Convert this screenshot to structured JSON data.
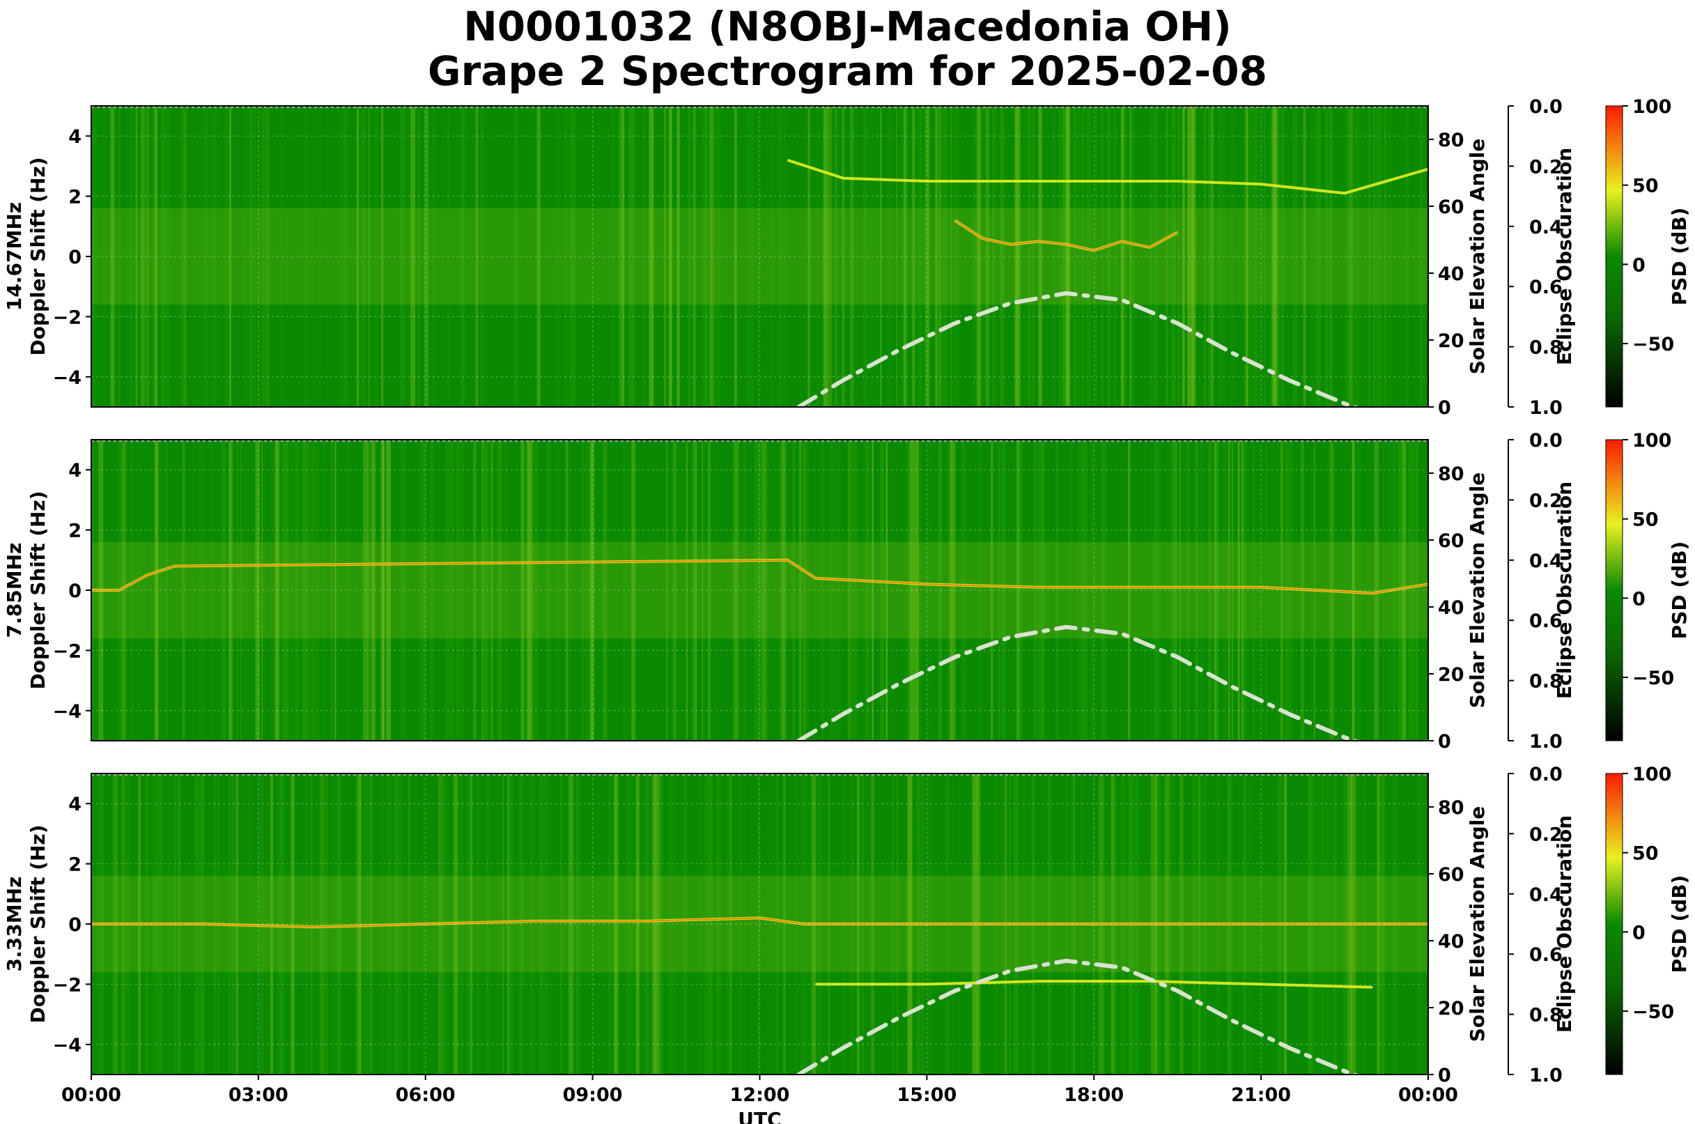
{
  "figure": {
    "title_line1": "N0001032 (N8OBJ-Macedonia OH)",
    "title_line2": "Grape 2 Spectrogram for 2025-02-08",
    "xlabel": "UTC",
    "x_ticks": [
      "00:00",
      "03:00",
      "06:00",
      "09:00",
      "12:00",
      "15:00",
      "18:00",
      "21:00",
      "00:00"
    ]
  },
  "colors": {
    "background_green": "#0a8a00",
    "noise_green": "#1f9d08",
    "signal_yellow": "#e6f020",
    "signal_red": "#ff3c00",
    "solar_curve": "#d9e2d0"
  },
  "chart_data": [
    {
      "type": "heatmap",
      "panel": "14.67MHz",
      "ylabel_line1": "14.67MHz",
      "ylabel_line2": "Doppler Shift (Hz)",
      "x_range_hours": [
        0,
        24
      ],
      "ylim": [
        -5,
        5
      ],
      "y_ticks": [
        "4",
        "2",
        "0",
        "−2",
        "−4"
      ],
      "right_ylabel": "Solar Elevation Angle",
      "right_ylim": [
        0,
        90
      ],
      "right_ticks": [
        "80",
        "60",
        "40",
        "20",
        "0"
      ],
      "eclipse_label": "Eclipse Obscuration",
      "eclipse_ticks": [
        "0.0",
        "0.2",
        "0.4",
        "0.6",
        "0.8",
        "1.0"
      ],
      "colorbar_label": "PSD (dB)",
      "colorbar_ticks": [
        "100",
        "50",
        "0",
        "−50"
      ],
      "colorbar_range": [
        -90,
        100
      ],
      "solar_elevation": {
        "x_hours": [
          12.7,
          13.5,
          14.5,
          15.5,
          16.5,
          17.5,
          18.5,
          19.5,
          20.5,
          21.5,
          22.5,
          23.0
        ],
        "y_deg": [
          0,
          8,
          17,
          25,
          31,
          34,
          32,
          25,
          16,
          8,
          1,
          -2
        ]
      },
      "doppler_traces": [
        {
          "name": "upper",
          "x_hours": [
            12.5,
            13.5,
            15.0,
            16.5,
            18.0,
            19.5,
            21.0,
            22.5,
            24.0
          ],
          "y_hz": [
            3.2,
            2.6,
            2.5,
            2.5,
            2.5,
            2.5,
            2.4,
            2.1,
            2.9
          ]
        },
        {
          "name": "main",
          "x_hours": [
            15.5,
            16.0,
            16.5,
            17.0,
            17.5,
            18.0,
            18.5,
            19.0,
            19.5
          ],
          "y_hz": [
            1.2,
            0.6,
            0.4,
            0.5,
            0.4,
            0.2,
            0.5,
            0.3,
            0.8
          ]
        }
      ]
    },
    {
      "type": "heatmap",
      "panel": "7.85MHz",
      "ylabel_line1": "7.85MHz",
      "ylabel_line2": "Doppler Shift (Hz)",
      "x_range_hours": [
        0,
        24
      ],
      "ylim": [
        -5,
        5
      ],
      "y_ticks": [
        "4",
        "2",
        "0",
        "−2",
        "−4"
      ],
      "right_ylabel": "Solar Elevation Angle",
      "right_ylim": [
        0,
        90
      ],
      "right_ticks": [
        "80",
        "60",
        "40",
        "20",
        "0"
      ],
      "eclipse_label": "Eclipse Obscuration",
      "eclipse_ticks": [
        "0.0",
        "0.2",
        "0.4",
        "0.6",
        "0.8",
        "1.0"
      ],
      "colorbar_label": "PSD (dB)",
      "colorbar_ticks": [
        "100",
        "50",
        "0",
        "−50"
      ],
      "colorbar_range": [
        -90,
        100
      ],
      "solar_elevation": {
        "x_hours": [
          12.7,
          13.5,
          14.5,
          15.5,
          16.5,
          17.5,
          18.5,
          19.5,
          20.5,
          21.5,
          22.5,
          23.0
        ],
        "y_deg": [
          0,
          8,
          17,
          25,
          31,
          34,
          32,
          25,
          16,
          8,
          1,
          -2
        ]
      },
      "doppler_traces": [
        {
          "name": "main",
          "x_hours": [
            0.0,
            0.5,
            1.0,
            1.5,
            12.5,
            13.0,
            15.0,
            17.0,
            19.0,
            21.0,
            23.0,
            24.0
          ],
          "y_hz": [
            0.0,
            0.0,
            0.5,
            0.8,
            1.0,
            0.4,
            0.2,
            0.1,
            0.1,
            0.1,
            -0.1,
            0.2
          ]
        }
      ]
    },
    {
      "type": "heatmap",
      "panel": "3.33MHz",
      "ylabel_line1": "3.33MHz",
      "ylabel_line2": "Doppler Shift (Hz)",
      "x_range_hours": [
        0,
        24
      ],
      "ylim": [
        -5,
        5
      ],
      "y_ticks": [
        "4",
        "2",
        "0",
        "−2",
        "−4"
      ],
      "right_ylabel": "Solar Elevation Angle",
      "right_ylim": [
        0,
        90
      ],
      "right_ticks": [
        "80",
        "60",
        "40",
        "20",
        "0"
      ],
      "eclipse_label": "Eclipse Obscuration",
      "eclipse_ticks": [
        "0.0",
        "0.2",
        "0.4",
        "0.6",
        "0.8",
        "1.0"
      ],
      "colorbar_label": "PSD (dB)",
      "colorbar_ticks": [
        "100",
        "50",
        "0",
        "−50"
      ],
      "colorbar_range": [
        -90,
        100
      ],
      "solar_elevation": {
        "x_hours": [
          12.7,
          13.5,
          14.5,
          15.5,
          16.5,
          17.5,
          18.5,
          19.5,
          20.5,
          21.5,
          22.5,
          23.0
        ],
        "y_deg": [
          0,
          8,
          17,
          25,
          31,
          34,
          32,
          25,
          16,
          8,
          1,
          -2
        ]
      },
      "doppler_traces": [
        {
          "name": "main",
          "x_hours": [
            0,
            2,
            4,
            6,
            8,
            10,
            12,
            12.8,
            14,
            16,
            18,
            20,
            22,
            24
          ],
          "y_hz": [
            0.0,
            0.0,
            -0.1,
            0.0,
            0.1,
            0.1,
            0.2,
            0.0,
            0.0,
            0.0,
            0.0,
            0.0,
            0.0,
            0.0
          ]
        },
        {
          "name": "lower",
          "x_hours": [
            13,
            15,
            17,
            19,
            21,
            23
          ],
          "y_hz": [
            -2.0,
            -2.0,
            -1.9,
            -1.9,
            -2.0,
            -2.1
          ]
        }
      ]
    }
  ]
}
